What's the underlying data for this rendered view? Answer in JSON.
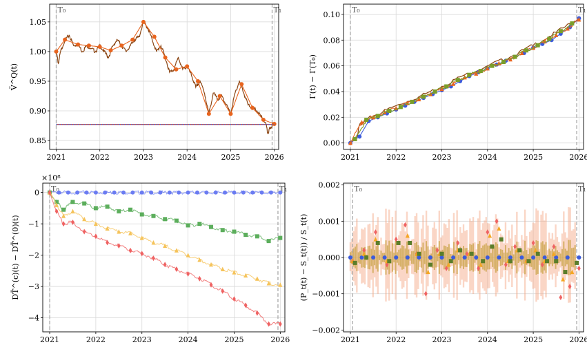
{
  "chart_data": [
    {
      "id": "tl",
      "type": "line",
      "ylabel": "Ṽ^Q(t)",
      "xlim": [
        2020.85,
        2026.1
      ],
      "ylim": [
        0.835,
        1.08
      ],
      "xticks": [
        2021,
        2022,
        2023,
        2024,
        2025,
        2026
      ],
      "xtick_labels": [
        "2021",
        "2022",
        "2023",
        "2024",
        "2025",
        "2026"
      ],
      "yticks": [
        0.85,
        0.9,
        0.95,
        1.0,
        1.05
      ],
      "ytick_labels": [
        "0.85",
        "0.90",
        "0.95",
        "1.00",
        "1.05"
      ],
      "multiplier": "",
      "vlines": [
        {
          "x": 2021.0,
          "label": "T₀"
        },
        {
          "x": 2025.95,
          "label": "T₁"
        }
      ],
      "series": [
        {
          "color": "#8b4513",
          "marker": "none",
          "hline": 0.877,
          "x": [
            2021.0,
            2021.05,
            2021.1,
            2021.2,
            2021.3,
            2021.4,
            2021.5,
            2021.6,
            2021.7,
            2021.8,
            2021.9,
            2022.0,
            2022.1,
            2022.2,
            2022.3,
            2022.4,
            2022.5,
            2022.6,
            2022.7,
            2022.8,
            2022.9,
            2023.0,
            2023.1,
            2023.2,
            2023.3,
            2023.4,
            2023.5,
            2023.6,
            2023.7,
            2023.8,
            2023.9,
            2024.0,
            2024.1,
            2024.2,
            2024.3,
            2024.4,
            2024.5,
            2024.6,
            2024.7,
            2024.8,
            2024.9,
            2025.0,
            2025.1,
            2025.2,
            2025.3,
            2025.4,
            2025.5,
            2025.6,
            2025.7,
            2025.8,
            2025.85,
            2025.9,
            2025.95,
            2026.0
          ],
          "y": [
            1.0,
            0.98,
            1.0,
            1.02,
            1.027,
            1.01,
            1.012,
            1.0,
            1.01,
            1.005,
            1.0,
            1.01,
            1.0,
            0.99,
            1.01,
            1.02,
            1.01,
            1.0,
            1.01,
            1.02,
            1.025,
            1.05,
            1.04,
            1.02,
            1.0,
            1.01,
            0.99,
            0.965,
            0.97,
            0.99,
            0.97,
            0.975,
            0.96,
            0.94,
            0.95,
            0.93,
            0.895,
            0.93,
            0.92,
            0.925,
            0.91,
            0.895,
            0.93,
            0.95,
            0.93,
            0.91,
            0.905,
            0.9,
            0.89,
            0.88,
            0.862,
            0.87,
            0.876,
            0.879
          ]
        },
        {
          "color": "#e8641e",
          "marker": "circle",
          "x": [
            2021.0,
            2021.2,
            2021.5,
            2021.75,
            2022.0,
            2022.25,
            2022.5,
            2022.75,
            2023.0,
            2023.25,
            2023.5,
            2023.75,
            2024.0,
            2024.25,
            2024.5,
            2024.75,
            2025.0,
            2025.25,
            2025.5,
            2025.75,
            2026.0
          ],
          "y": [
            1.0,
            1.02,
            1.012,
            1.01,
            1.008,
            1.002,
            1.01,
            1.02,
            1.05,
            1.025,
            0.99,
            0.97,
            0.975,
            0.95,
            0.895,
            0.925,
            0.895,
            0.945,
            0.905,
            0.885,
            0.878
          ]
        },
        {
          "color": "#3b5bdb",
          "marker": "none",
          "dotted_hline": 0.877
        }
      ]
    },
    {
      "id": "tr",
      "type": "line",
      "ylabel": "Γ(t) − Γ(T₀)",
      "xlim": [
        2020.85,
        2026.1
      ],
      "ylim": [
        -0.005,
        0.108
      ],
      "xticks": [
        2021,
        2022,
        2023,
        2024,
        2025,
        2026
      ],
      "xtick_labels": [
        "2021",
        "2022",
        "2023",
        "2024",
        "2025",
        "2026"
      ],
      "yticks": [
        0.0,
        0.02,
        0.04,
        0.06,
        0.08,
        0.1
      ],
      "ytick_labels": [
        "0.00",
        "0.02",
        "0.04",
        "0.06",
        "0.08",
        "0.10"
      ],
      "multiplier": "",
      "vlines": [
        {
          "x": 2021.0,
          "label": "T₀"
        },
        {
          "x": 2025.95,
          "label": "T₁"
        }
      ],
      "series": [
        {
          "color": "#8b4513",
          "marker": "none",
          "x": [
            2021.0,
            2021.15,
            2021.2,
            2021.3,
            2021.5,
            2022.0,
            2022.5,
            2023.0,
            2023.5,
            2024.0,
            2024.5,
            2025.0,
            2025.5,
            2026.0
          ],
          "y": [
            0.0,
            0.005,
            0.014,
            0.017,
            0.021,
            0.029,
            0.036,
            0.044,
            0.053,
            0.06,
            0.067,
            0.076,
            0.086,
            0.097
          ]
        },
        {
          "color": "#3b5bdb",
          "marker": "circle",
          "x": [
            2021.0,
            2021.2,
            2021.4,
            2021.6,
            2021.8,
            2022.0,
            2022.2,
            2022.4,
            2022.6,
            2022.8,
            2023.0,
            2023.2,
            2023.4,
            2023.6,
            2023.8,
            2024.0,
            2024.2,
            2024.4,
            2024.6,
            2024.8,
            2025.0,
            2025.2,
            2025.4,
            2025.6,
            2025.8,
            2026.0
          ],
          "y": [
            0.0,
            0.005,
            0.017,
            0.02,
            0.023,
            0.026,
            0.029,
            0.032,
            0.035,
            0.038,
            0.041,
            0.044,
            0.048,
            0.052,
            0.055,
            0.058,
            0.061,
            0.064,
            0.067,
            0.07,
            0.074,
            0.077,
            0.08,
            0.085,
            0.09,
            0.097
          ]
        },
        {
          "color": "#e8641e",
          "marker": "triangle",
          "x": [
            2021.0,
            2021.25,
            2021.5,
            2021.75,
            2022.0,
            2022.25,
            2022.5,
            2022.75,
            2023.0,
            2023.25,
            2023.5,
            2023.75,
            2024.0,
            2024.25,
            2024.5,
            2024.75,
            2025.0,
            2025.25,
            2025.5,
            2025.75,
            2026.0
          ],
          "y": [
            0.0,
            0.016,
            0.02,
            0.024,
            0.027,
            0.031,
            0.034,
            0.038,
            0.042,
            0.046,
            0.051,
            0.054,
            0.058,
            0.062,
            0.065,
            0.07,
            0.074,
            0.079,
            0.084,
            0.089,
            0.096
          ]
        },
        {
          "color": "#7a9e2a",
          "marker": "square",
          "x": [
            2021.1,
            2021.35,
            2021.6,
            2021.85,
            2022.1,
            2022.35,
            2022.6,
            2022.85,
            2023.1,
            2023.35,
            2023.6,
            2023.85,
            2024.1,
            2024.35,
            2024.6,
            2024.85,
            2025.1,
            2025.35,
            2025.6,
            2025.85
          ],
          "y": [
            0.003,
            0.018,
            0.021,
            0.025,
            0.028,
            0.032,
            0.036,
            0.04,
            0.044,
            0.049,
            0.053,
            0.056,
            0.06,
            0.063,
            0.067,
            0.072,
            0.076,
            0.081,
            0.087,
            0.093
          ]
        }
      ]
    },
    {
      "id": "bl",
      "type": "line",
      "ylabel": "DT̄^(c)(t) − DT̄^(0)(t)",
      "xlim": [
        2020.85,
        2026.1
      ],
      "ylim": [
        -4.45,
        0.3
      ],
      "xticks": [
        2021,
        2022,
        2023,
        2024,
        2025,
        2026
      ],
      "xtick_labels": [
        "2021",
        "2022",
        "2023",
        "2024",
        "2025",
        "2026"
      ],
      "yticks": [
        0,
        -1,
        -2,
        -3,
        -4
      ],
      "ytick_labels": [
        "0",
        "−1",
        "−2",
        "−3",
        "−4"
      ],
      "multiplier": "×10⁸",
      "vlines": [
        {
          "x": 2021.0,
          "label": "T₀"
        },
        {
          "x": 2025.95,
          "label": "T₁"
        }
      ],
      "series": [
        {
          "color": "#6b7cf2",
          "marker": "circle",
          "x": [
            2021.0,
            2021.2,
            2021.4,
            2021.6,
            2021.8,
            2022.0,
            2022.2,
            2022.4,
            2022.6,
            2022.8,
            2023.0,
            2023.2,
            2023.4,
            2023.6,
            2023.8,
            2024.0,
            2024.2,
            2024.4,
            2024.6,
            2024.8,
            2025.0,
            2025.2,
            2025.4,
            2025.6,
            2025.8,
            2026.0
          ],
          "y": [
            0,
            0,
            0,
            0,
            0,
            0,
            0,
            0,
            0,
            0,
            0,
            0,
            0,
            0,
            0,
            0,
            0,
            0,
            0,
            0,
            0,
            0,
            0,
            0,
            0,
            0
          ]
        },
        {
          "color": "#5cae5c",
          "marker": "square",
          "x": [
            2021.0,
            2021.15,
            2021.3,
            2021.5,
            2021.75,
            2022.0,
            2022.25,
            2022.5,
            2022.75,
            2023.0,
            2023.25,
            2023.5,
            2023.75,
            2024.0,
            2024.25,
            2024.5,
            2024.75,
            2025.0,
            2025.25,
            2025.5,
            2025.75,
            2026.0
          ],
          "y": [
            0,
            -0.3,
            -0.55,
            -0.3,
            -0.35,
            -0.5,
            -0.45,
            -0.6,
            -0.55,
            -0.7,
            -0.75,
            -0.85,
            -0.9,
            -1.05,
            -1.0,
            -1.1,
            -1.2,
            -1.25,
            -1.35,
            -1.4,
            -1.55,
            -1.45
          ]
        },
        {
          "color": "#f5c35a",
          "marker": "triangle",
          "x": [
            2021.0,
            2021.15,
            2021.3,
            2021.5,
            2021.75,
            2022.0,
            2022.25,
            2022.5,
            2022.75,
            2023.0,
            2023.25,
            2023.5,
            2023.75,
            2024.0,
            2024.25,
            2024.5,
            2024.75,
            2025.0,
            2025.25,
            2025.5,
            2025.75,
            2026.0
          ],
          "y": [
            0,
            -0.4,
            -0.75,
            -0.6,
            -0.85,
            -1.0,
            -1.15,
            -1.25,
            -1.3,
            -1.45,
            -1.6,
            -1.7,
            -1.85,
            -2.0,
            -2.15,
            -2.3,
            -2.45,
            -2.55,
            -2.65,
            -2.75,
            -2.9,
            -2.95
          ]
        },
        {
          "color": "#ef6262",
          "marker": "diamond",
          "x": [
            2021.0,
            2021.15,
            2021.3,
            2021.5,
            2021.75,
            2022.0,
            2022.25,
            2022.5,
            2022.75,
            2023.0,
            2023.25,
            2023.5,
            2023.75,
            2024.0,
            2024.25,
            2024.5,
            2024.75,
            2025.0,
            2025.25,
            2025.5,
            2025.75,
            2026.0
          ],
          "y": [
            0,
            -0.6,
            -1.0,
            -0.95,
            -1.25,
            -1.4,
            -1.6,
            -1.7,
            -1.85,
            -1.95,
            -2.1,
            -2.3,
            -2.45,
            -2.6,
            -2.75,
            -2.95,
            -3.15,
            -3.4,
            -3.6,
            -3.85,
            -4.2,
            -4.2
          ]
        }
      ]
    },
    {
      "id": "br",
      "type": "scatter",
      "ylabel": "(P_t(t) − S_t(t)) / S_t(t)",
      "xlim": [
        2020.85,
        2026.1
      ],
      "ylim": [
        -0.00205,
        0.00205
      ],
      "xticks": [
        2021,
        2022,
        2023,
        2024,
        2025,
        2026
      ],
      "xtick_labels": [
        "2021",
        "2022",
        "2023",
        "2024",
        "2025",
        "2026"
      ],
      "yticks": [
        0.002,
        0.001,
        0.0,
        -0.001,
        -0.002
      ],
      "ytick_labels": [
        "0.002",
        "0.001",
        "0.000",
        "−0.001",
        "−0.002"
      ],
      "multiplier": "",
      "vlines": [
        {
          "x": 2021.05,
          "label": "T₀"
        },
        {
          "x": 2025.95,
          "label": "T₁"
        }
      ],
      "band": {
        "color": "#f4a582",
        "inner_color": "#c8a040"
      },
      "series": [
        {
          "color": "#3b5bdb",
          "marker": "circle",
          "x": [
            2021.0,
            2021.25,
            2021.5,
            2021.75,
            2022.0,
            2022.25,
            2022.5,
            2022.75,
            2023.0,
            2023.25,
            2023.5,
            2023.75,
            2024.0,
            2024.25,
            2024.5,
            2024.75,
            2025.0,
            2025.25,
            2025.5,
            2025.75,
            2026.0
          ],
          "y": [
            0,
            0,
            0,
            0,
            0,
            0,
            0,
            0,
            0,
            0,
            0,
            0,
            0,
            0,
            0,
            0,
            0,
            0,
            0,
            0,
            0
          ]
        },
        {
          "color": "#ef6262",
          "marker": "diamond",
          "x": [
            2021.05,
            2021.3,
            2021.55,
            2021.8,
            2022.0,
            2022.2,
            2022.45,
            2022.65,
            2022.9,
            2023.1,
            2023.35,
            2023.55,
            2023.8,
            2024.0,
            2024.2,
            2024.4,
            2024.6,
            2024.85,
            2025.0,
            2025.2,
            2025.45,
            2025.6,
            2025.8,
            2026.0
          ],
          "y": [
            -0.0001,
            0.0002,
            0.0007,
            -0.0002,
            0.0005,
            0.0009,
            0.0001,
            -0.001,
            0.0002,
            -0.0003,
            0.0004,
            0.0001,
            -0.0003,
            0.0007,
            0.001,
            -0.0002,
            0.0003,
            -0.0001,
            0.0004,
            -0.0002,
            0.0003,
            -0.0011,
            -0.0008,
            -0.0003
          ]
        },
        {
          "color": "#f5a623",
          "marker": "triangle",
          "x": [
            2021.05,
            2021.3,
            2021.55,
            2021.8,
            2022.05,
            2022.25,
            2022.45,
            2022.7,
            2022.95,
            2023.15,
            2023.35,
            2023.6,
            2023.85,
            2024.05,
            2024.25,
            2024.45,
            2024.65,
            2024.85,
            2025.05,
            2025.25,
            2025.45,
            2025.65,
            2025.85
          ],
          "y": [
            -0.0001,
            0.0001,
            0.0005,
            -0.0001,
            0.0004,
            0.0006,
            0.0001,
            -0.0004,
            0.0001,
            -0.0002,
            0.0002,
            0.0001,
            -0.0002,
            0.0006,
            0.0008,
            -0.0001,
            0.0002,
            -0.0001,
            0.0002,
            -0.0001,
            0.0001,
            -0.0006,
            -0.0004
          ]
        },
        {
          "color": "#5a7d2a",
          "marker": "square",
          "x": [
            2021.1,
            2021.35,
            2021.6,
            2021.85,
            2022.05,
            2022.3,
            2022.5,
            2022.75,
            2023.0,
            2023.2,
            2023.4,
            2023.65,
            2023.9,
            2024.1,
            2024.3,
            2024.5,
            2024.7,
            2024.9,
            2025.1,
            2025.3,
            2025.5,
            2025.7,
            2025.95
          ],
          "y": [
            -0.00015,
            0.0,
            0.0004,
            -0.0001,
            0.0004,
            0.0004,
            0.0001,
            -0.0002,
            0.0001,
            -0.0001,
            0.0002,
            0.0001,
            -0.0001,
            0.0003,
            0.0005,
            -0.0001,
            0.0002,
            -0.0001,
            0.0001,
            -0.0001,
            -0.0001,
            -0.0004,
            -0.00015
          ]
        }
      ]
    }
  ]
}
